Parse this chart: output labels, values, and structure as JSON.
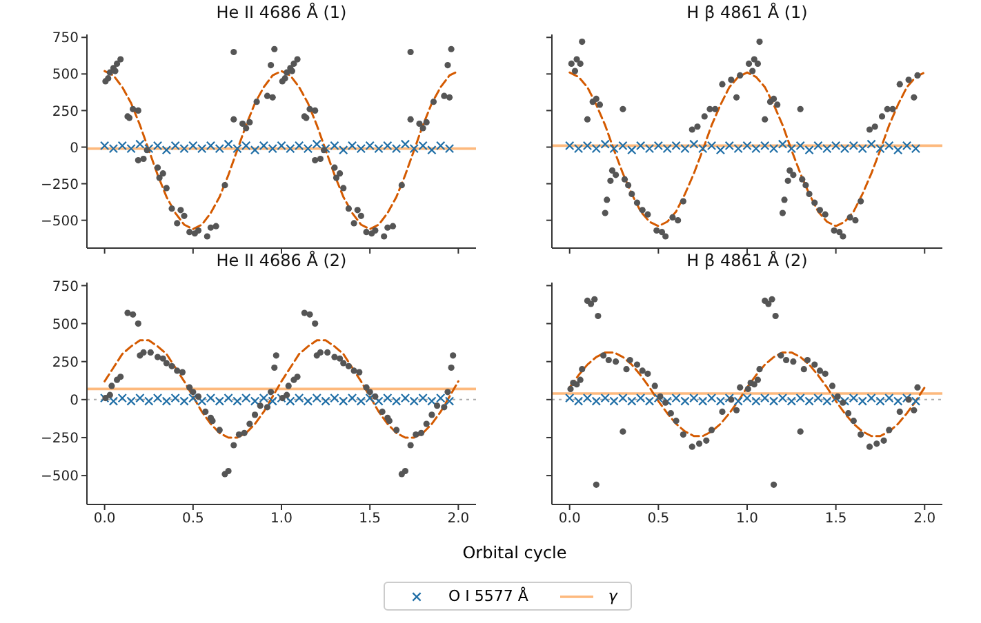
{
  "chart_data": [
    {
      "type": "scatter",
      "title": "He II 4686 Å (1)",
      "xlim": [
        -0.1,
        2.1
      ],
      "xticks": [
        0,
        0.5,
        1,
        1.5,
        2
      ],
      "ylim": [
        -690,
        770
      ],
      "yticks": [
        -500,
        -250,
        0,
        250,
        500,
        750
      ],
      "tick_labels": "y",
      "legend": "bottom",
      "series": [
        {
          "type": "scatter",
          "name": "O I 5577 Å",
          "color": "#1f6ea6",
          "marker": "cross",
          "x": [
            0,
            0.05,
            0.1,
            0.15,
            0.2,
            0.25,
            0.3,
            0.35,
            0.4,
            0.45,
            0.5,
            0.55,
            0.6,
            0.65,
            0.7,
            0.75,
            0.8,
            0.85,
            0.9,
            0.95,
            1,
            1.05,
            1.1,
            1.15,
            1.2,
            1.25,
            1.3,
            1.35,
            1.4,
            1.45,
            1.5,
            1.55,
            1.6,
            1.65,
            1.7,
            1.75,
            1.8,
            1.85,
            1.9,
            1.95
          ],
          "values": [
            10,
            -10,
            10,
            -10,
            20,
            -10,
            10,
            -20,
            10,
            -10,
            10,
            -10,
            10,
            -10,
            20,
            -10,
            10,
            -20,
            10,
            -10,
            10,
            -10,
            10,
            -10,
            20,
            -10,
            10,
            -20,
            10,
            -10,
            10,
            -10,
            10,
            -10,
            20,
            -10,
            10,
            -20,
            10,
            -10
          ]
        },
        {
          "type": "line",
          "name": "γ",
          "color": "#fdb97d",
          "line_style": "solid",
          "x": [
            -0.1,
            2.1
          ],
          "values": [
            -10,
            -10
          ]
        },
        {
          "type": "scatter",
          "color": "#555555",
          "marker": "circle",
          "x": [
            0.005,
            0.02,
            0.03,
            0.05,
            0.06,
            0.07,
            0.09,
            0.13,
            0.14,
            0.16,
            0.19,
            0.19,
            0.22,
            0.24,
            0.3,
            0.31,
            0.33,
            0.35,
            0.38,
            0.41,
            0.43,
            0.45,
            0.48,
            0.51,
            0.53,
            0.58,
            0.6,
            0.63,
            0.68,
            0.73,
            0.73,
            0.78,
            0.8,
            0.82,
            0.86,
            0.92,
            0.94,
            0.95,
            0.96,
            1.005,
            1.02,
            1.03,
            1.05,
            1.06,
            1.07,
            1.09,
            1.13,
            1.14,
            1.16,
            1.19,
            1.19,
            1.22,
            1.24,
            1.3,
            1.31,
            1.33,
            1.35,
            1.38,
            1.41,
            1.43,
            1.45,
            1.48,
            1.51,
            1.53,
            1.58,
            1.6,
            1.63,
            1.68,
            1.73,
            1.73,
            1.78,
            1.8,
            1.82,
            1.86,
            1.92,
            1.94,
            1.95,
            1.96
          ],
          "values": [
            450,
            470,
            510,
            540,
            520,
            570,
            600,
            210,
            200,
            260,
            250,
            -90,
            -80,
            -20,
            -140,
            -210,
            -180,
            -280,
            -420,
            -520,
            -430,
            -470,
            -580,
            -590,
            -570,
            -610,
            -550,
            -540,
            -260,
            650,
            190,
            160,
            130,
            170,
            310,
            350,
            560,
            340,
            670,
            450,
            470,
            510,
            540,
            520,
            570,
            600,
            210,
            200,
            260,
            250,
            -90,
            -80,
            -20,
            -140,
            -210,
            -180,
            -280,
            -420,
            -520,
            -430,
            -470,
            -580,
            -590,
            -570,
            -610,
            -550,
            -540,
            -260,
            650,
            190,
            160,
            130,
            170,
            310,
            350,
            560,
            340,
            670
          ]
        },
        {
          "type": "line",
          "color": "#d45a00",
          "line_style": "dashed",
          "x": [
            0,
            0.05,
            0.1,
            0.15,
            0.2,
            0.25,
            0.3,
            0.35,
            0.4,
            0.45,
            0.5,
            0.55,
            0.6,
            0.65,
            0.7,
            0.75,
            0.8,
            0.85,
            0.9,
            0.95,
            1,
            1.05,
            1.1,
            1.15,
            1.2,
            1.25,
            1.3,
            1.35,
            1.4,
            1.45,
            1.5,
            1.55,
            1.6,
            1.65,
            1.7,
            1.75,
            1.8,
            1.85,
            1.9,
            1.95,
            2
          ],
          "values": [
            520,
            490,
            410,
            300,
            150,
            -20,
            -190,
            -340,
            -450,
            -530,
            -560,
            -530,
            -450,
            -340,
            -190,
            -20,
            150,
            300,
            410,
            490,
            520,
            490,
            410,
            300,
            150,
            -20,
            -190,
            -340,
            -450,
            -530,
            -560,
            -530,
            -450,
            -340,
            -190,
            -20,
            150,
            300,
            410,
            490,
            520
          ]
        }
      ]
    },
    {
      "type": "scatter",
      "title": "H β 4861 Å (1)",
      "xlim": [
        -0.1,
        2.1
      ],
      "xticks": [
        0,
        0.5,
        1,
        1.5,
        2
      ],
      "ylim": [
        -690,
        770
      ],
      "yticks": [
        -500,
        -250,
        0,
        250,
        500,
        750
      ],
      "tick_labels": false,
      "series": [
        {
          "type": "scatter",
          "color": "#1f6ea6",
          "marker": "cross",
          "x": [
            0,
            0.05,
            0.1,
            0.15,
            0.2,
            0.25,
            0.3,
            0.35,
            0.4,
            0.45,
            0.5,
            0.55,
            0.6,
            0.65,
            0.7,
            0.75,
            0.8,
            0.85,
            0.9,
            0.95,
            1,
            1.05,
            1.1,
            1.15,
            1.2,
            1.25,
            1.3,
            1.35,
            1.4,
            1.45,
            1.5,
            1.55,
            1.6,
            1.65,
            1.7,
            1.75,
            1.8,
            1.85,
            1.9,
            1.95
          ],
          "values": [
            10,
            -10,
            10,
            -10,
            20,
            -10,
            10,
            -20,
            10,
            -10,
            10,
            -10,
            10,
            -10,
            20,
            -10,
            10,
            -20,
            10,
            -10,
            10,
            -10,
            10,
            -10,
            20,
            -10,
            10,
            -20,
            10,
            -10,
            10,
            -10,
            10,
            -10,
            20,
            -10,
            10,
            -20,
            10,
            -10
          ]
        },
        {
          "type": "line",
          "color": "#fdb97d",
          "line_style": "solid",
          "x": [
            -0.1,
            2.1
          ],
          "values": [
            10,
            10
          ]
        },
        {
          "type": "scatter",
          "color": "#555555",
          "marker": "circle",
          "x": [
            0.01,
            0.03,
            0.04,
            0.06,
            0.07,
            0.1,
            0.13,
            0.15,
            0.17,
            0.2,
            0.21,
            0.23,
            0.24,
            0.26,
            0.3,
            0.31,
            0.33,
            0.35,
            0.38,
            0.41,
            0.44,
            0.49,
            0.52,
            0.54,
            0.58,
            0.61,
            0.64,
            0.69,
            0.72,
            0.76,
            0.79,
            0.82,
            0.86,
            0.91,
            0.94,
            0.96,
            1.01,
            1.03,
            1.04,
            1.06,
            1.07,
            1.1,
            1.13,
            1.15,
            1.17,
            1.2,
            1.21,
            1.23,
            1.24,
            1.26,
            1.3,
            1.31,
            1.33,
            1.35,
            1.38,
            1.41,
            1.44,
            1.49,
            1.52,
            1.54,
            1.58,
            1.61,
            1.64,
            1.69,
            1.72,
            1.76,
            1.79,
            1.82,
            1.86,
            1.91,
            1.94,
            1.96
          ],
          "values": [
            570,
            520,
            600,
            570,
            720,
            190,
            310,
            330,
            290,
            -450,
            -360,
            -230,
            -160,
            -190,
            260,
            -220,
            -260,
            -320,
            -380,
            -430,
            -460,
            -570,
            -580,
            -610,
            -480,
            -500,
            -370,
            120,
            140,
            210,
            260,
            260,
            430,
            460,
            340,
            490,
            570,
            520,
            600,
            570,
            720,
            190,
            310,
            330,
            290,
            -450,
            -360,
            -230,
            -160,
            -190,
            260,
            -220,
            -260,
            -320,
            -380,
            -430,
            -460,
            -570,
            -580,
            -610,
            -480,
            -500,
            -370,
            120,
            140,
            210,
            260,
            260,
            430,
            460,
            340,
            490
          ]
        },
        {
          "type": "line",
          "color": "#d45a00",
          "line_style": "dashed",
          "x": [
            0,
            0.05,
            0.1,
            0.15,
            0.2,
            0.25,
            0.3,
            0.35,
            0.4,
            0.45,
            0.5,
            0.55,
            0.6,
            0.65,
            0.7,
            0.75,
            0.8,
            0.85,
            0.9,
            0.95,
            1,
            1.05,
            1.1,
            1.15,
            1.2,
            1.25,
            1.3,
            1.35,
            1.4,
            1.45,
            1.5,
            1.55,
            1.6,
            1.65,
            1.7,
            1.75,
            1.8,
            1.85,
            1.9,
            1.95,
            2
          ],
          "values": [
            510,
            480,
            410,
            290,
            150,
            -20,
            -180,
            -320,
            -440,
            -510,
            -540,
            -510,
            -440,
            -320,
            -180,
            -20,
            150,
            290,
            410,
            480,
            510,
            480,
            410,
            290,
            150,
            -20,
            -180,
            -320,
            -440,
            -510,
            -540,
            -510,
            -440,
            -320,
            -180,
            -20,
            150,
            290,
            410,
            480,
            510
          ]
        }
      ]
    },
    {
      "type": "scatter",
      "title": "He II 4686 Å (2)",
      "xlabel": "Orbital cycle",
      "xlim": [
        -0.1,
        2.1
      ],
      "xticks": [
        {
          "value": 0,
          "label": "0.0"
        },
        {
          "value": 0.5,
          "label": "0.5"
        },
        {
          "value": 1,
          "label": "1.0"
        },
        {
          "value": 1.5,
          "label": "1.5"
        },
        {
          "value": 2,
          "label": "2.0"
        }
      ],
      "ylim": [
        -690,
        770
      ],
      "yticks": [
        -500,
        -250,
        0,
        250,
        500,
        750
      ],
      "ref_lines": [
        {
          "axis": "y",
          "value": 0,
          "color": "#aaaaaa",
          "line_style": "dotted"
        }
      ],
      "series": [
        {
          "type": "scatter",
          "color": "#1f6ea6",
          "marker": "cross",
          "x": [
            0,
            0.05,
            0.1,
            0.15,
            0.2,
            0.25,
            0.3,
            0.35,
            0.4,
            0.45,
            0.5,
            0.55,
            0.6,
            0.65,
            0.7,
            0.75,
            0.8,
            0.85,
            0.9,
            0.95,
            1,
            1.05,
            1.1,
            1.15,
            1.2,
            1.25,
            1.3,
            1.35,
            1.4,
            1.45,
            1.5,
            1.55,
            1.6,
            1.65,
            1.7,
            1.75,
            1.8,
            1.85,
            1.9,
            1.95
          ],
          "values": [
            10,
            -10,
            10,
            -10,
            10,
            -10,
            10,
            -10,
            10,
            -10,
            10,
            -10,
            10,
            -10,
            10,
            -10,
            10,
            -10,
            10,
            -10,
            10,
            -10,
            10,
            -10,
            10,
            -10,
            10,
            -10,
            10,
            -10,
            10,
            -10,
            10,
            -10,
            10,
            -10,
            10,
            -10,
            10,
            -10
          ]
        },
        {
          "type": "line",
          "color": "#fdb97d",
          "line_style": "solid",
          "x": [
            -0.1,
            2.1
          ],
          "values": [
            70,
            70
          ]
        },
        {
          "type": "scatter",
          "color": "#555555",
          "marker": "circle",
          "x": [
            0.005,
            0.03,
            0.04,
            0.07,
            0.09,
            0.13,
            0.16,
            0.19,
            0.2,
            0.22,
            0.26,
            0.3,
            0.33,
            0.35,
            0.38,
            0.41,
            0.44,
            0.48,
            0.5,
            0.53,
            0.57,
            0.6,
            0.61,
            0.65,
            0.68,
            0.7,
            0.73,
            0.76,
            0.79,
            0.82,
            0.85,
            0.88,
            0.92,
            0.94,
            0.96,
            0.97,
            1.005,
            1.03,
            1.04,
            1.07,
            1.09,
            1.13,
            1.16,
            1.19,
            1.2,
            1.22,
            1.26,
            1.3,
            1.33,
            1.35,
            1.38,
            1.41,
            1.44,
            1.48,
            1.5,
            1.53,
            1.57,
            1.6,
            1.61,
            1.65,
            1.68,
            1.7,
            1.73,
            1.76,
            1.79,
            1.82,
            1.85,
            1.88,
            1.92,
            1.94,
            1.96,
            1.97
          ],
          "values": [
            10,
            30,
            90,
            130,
            150,
            570,
            560,
            500,
            290,
            310,
            310,
            280,
            270,
            240,
            220,
            190,
            180,
            80,
            50,
            20,
            -80,
            -120,
            -140,
            -200,
            -490,
            -470,
            -300,
            -230,
            -220,
            -160,
            -100,
            -40,
            -50,
            50,
            210,
            290,
            10,
            30,
            90,
            130,
            150,
            570,
            560,
            500,
            290,
            310,
            310,
            280,
            270,
            240,
            220,
            190,
            180,
            80,
            50,
            20,
            -80,
            -120,
            -140,
            -200,
            -490,
            -470,
            -300,
            -230,
            -220,
            -160,
            -100,
            -40,
            -50,
            50,
            210,
            290
          ]
        },
        {
          "type": "line",
          "color": "#d45a00",
          "line_style": "dashed",
          "x": [
            0,
            0.05,
            0.1,
            0.15,
            0.2,
            0.25,
            0.3,
            0.35,
            0.4,
            0.45,
            0.5,
            0.55,
            0.6,
            0.65,
            0.7,
            0.75,
            0.8,
            0.85,
            0.9,
            0.95,
            1,
            1.05,
            1.1,
            1.15,
            1.2,
            1.25,
            1.3,
            1.35,
            1.4,
            1.45,
            1.5,
            1.55,
            1.6,
            1.65,
            1.7,
            1.75,
            1.8,
            1.85,
            1.9,
            1.95,
            2
          ],
          "values": [
            120,
            210,
            300,
            350,
            390,
            390,
            350,
            300,
            210,
            120,
            20,
            -80,
            -160,
            -220,
            -250,
            -250,
            -220,
            -160,
            -80,
            20,
            120,
            210,
            300,
            350,
            390,
            390,
            350,
            300,
            210,
            120,
            20,
            -80,
            -160,
            -220,
            -250,
            -250,
            -220,
            -160,
            -80,
            20,
            120
          ]
        }
      ]
    },
    {
      "type": "scatter",
      "title": "H β 4861 Å (2)",
      "xlim": [
        -0.1,
        2.1
      ],
      "xticks": [
        {
          "value": 0,
          "label": "0.0"
        },
        {
          "value": 0.5,
          "label": "0.5"
        },
        {
          "value": 1,
          "label": "1.0"
        },
        {
          "value": 1.5,
          "label": "1.5"
        },
        {
          "value": 2,
          "label": "2.0"
        }
      ],
      "ylim": [
        -690,
        770
      ],
      "yticks": [
        -500,
        -250,
        0,
        250,
        500,
        750
      ],
      "tick_labels": "x",
      "ref_lines": [
        {
          "axis": "y",
          "value": 0,
          "color": "#aaaaaa",
          "line_style": "dotted"
        }
      ],
      "series": [
        {
          "type": "scatter",
          "color": "#1f6ea6",
          "marker": "cross",
          "x": [
            0,
            0.05,
            0.1,
            0.15,
            0.2,
            0.25,
            0.3,
            0.35,
            0.4,
            0.45,
            0.5,
            0.55,
            0.6,
            0.65,
            0.7,
            0.75,
            0.8,
            0.85,
            0.9,
            0.95,
            1,
            1.05,
            1.1,
            1.15,
            1.2,
            1.25,
            1.3,
            1.35,
            1.4,
            1.45,
            1.5,
            1.55,
            1.6,
            1.65,
            1.7,
            1.75,
            1.8,
            1.85,
            1.9,
            1.95
          ],
          "values": [
            10,
            -10,
            10,
            -10,
            10,
            -10,
            10,
            -10,
            10,
            -10,
            10,
            -10,
            10,
            -10,
            10,
            -10,
            10,
            -10,
            10,
            -10,
            10,
            -10,
            10,
            -10,
            10,
            -10,
            10,
            -10,
            10,
            -10,
            10,
            -10,
            10,
            -10,
            10,
            -10,
            10,
            -10,
            10,
            -10
          ]
        },
        {
          "type": "line",
          "color": "#fdb97d",
          "line_style": "solid",
          "x": [
            -0.1,
            2.1
          ],
          "values": [
            40,
            40
          ]
        },
        {
          "type": "scatter",
          "color": "#555555",
          "marker": "circle",
          "x": [
            0.005,
            0.02,
            0.04,
            0.06,
            0.07,
            0.1,
            0.12,
            0.14,
            0.15,
            0.16,
            0.19,
            0.22,
            0.26,
            0.3,
            0.32,
            0.34,
            0.38,
            0.41,
            0.44,
            0.48,
            0.51,
            0.54,
            0.57,
            0.6,
            0.64,
            0.69,
            0.73,
            0.77,
            0.8,
            0.86,
            0.91,
            0.94,
            0.96,
            1.005,
            1.02,
            1.04,
            1.06,
            1.07,
            1.1,
            1.12,
            1.14,
            1.15,
            1.16,
            1.19,
            1.22,
            1.26,
            1.3,
            1.32,
            1.34,
            1.38,
            1.41,
            1.44,
            1.48,
            1.51,
            1.54,
            1.57,
            1.6,
            1.64,
            1.69,
            1.73,
            1.77,
            1.8,
            1.86,
            1.91,
            1.94,
            1.96
          ],
          "values": [
            70,
            110,
            100,
            130,
            200,
            650,
            630,
            660,
            -560,
            550,
            290,
            260,
            250,
            -210,
            200,
            260,
            230,
            190,
            170,
            90,
            20,
            -20,
            -90,
            -140,
            -230,
            -310,
            -290,
            -270,
            -200,
            -80,
            0,
            -70,
            80,
            70,
            110,
            100,
            130,
            200,
            650,
            630,
            660,
            -560,
            550,
            290,
            260,
            250,
            -210,
            200,
            260,
            230,
            190,
            170,
            90,
            20,
            -20,
            -90,
            -140,
            -230,
            -310,
            -290,
            -270,
            -200,
            -80,
            0,
            -70,
            80
          ]
        },
        {
          "type": "line",
          "color": "#d45a00",
          "line_style": "dashed",
          "x": [
            0,
            0.05,
            0.1,
            0.15,
            0.2,
            0.25,
            0.3,
            0.35,
            0.4,
            0.45,
            0.5,
            0.55,
            0.6,
            0.65,
            0.7,
            0.75,
            0.8,
            0.85,
            0.9,
            0.95,
            1,
            1.05,
            1.1,
            1.15,
            1.2,
            1.25,
            1.3,
            1.35,
            1.4,
            1.45,
            1.5,
            1.55,
            1.6,
            1.65,
            1.7,
            1.75,
            1.8,
            1.85,
            1.9,
            1.95,
            2
          ],
          "values": [
            80,
            160,
            230,
            280,
            310,
            310,
            280,
            230,
            160,
            80,
            -10,
            -90,
            -160,
            -210,
            -240,
            -240,
            -210,
            -160,
            -90,
            -10,
            80,
            160,
            230,
            280,
            310,
            310,
            280,
            230,
            160,
            80,
            -10,
            -90,
            -160,
            -210,
            -240,
            -240,
            -210,
            -160,
            -90,
            -10,
            80
          ]
        }
      ]
    }
  ]
}
